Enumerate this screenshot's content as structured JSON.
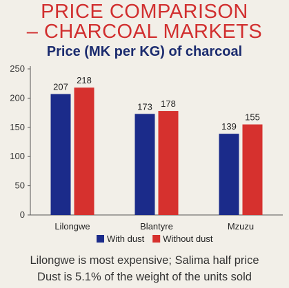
{
  "header": {
    "title_line1": "PRICE COMPARISON",
    "title_line2": "– CHARCOAL MARKETS",
    "subtitle": "Price (MK per KG) of charcoal"
  },
  "footer": {
    "line1": "Lilongwe is most expensive; Salima half price",
    "line2": "Dust is 5.1% of the weight of the units sold"
  },
  "colors": {
    "with_dust": "#1b2b8a",
    "without_dust": "#d6312e",
    "title": "#d12f2f",
    "subtitle": "#1b2b6e"
  },
  "chart_data": {
    "type": "bar",
    "title": "Price (MK per KG) of charcoal",
    "categories": [
      "Lilongwe",
      "Blantyre",
      "Mzuzu"
    ],
    "series": [
      {
        "name": "With dust",
        "values": [
          207,
          173,
          139
        ]
      },
      {
        "name": "Without dust",
        "values": [
          218,
          178,
          155
        ]
      }
    ],
    "ylim": [
      0,
      250
    ],
    "yticks": [
      0,
      50,
      100,
      150,
      200,
      250
    ],
    "grid": false,
    "legend_position": "bottom",
    "data_labels": true
  }
}
